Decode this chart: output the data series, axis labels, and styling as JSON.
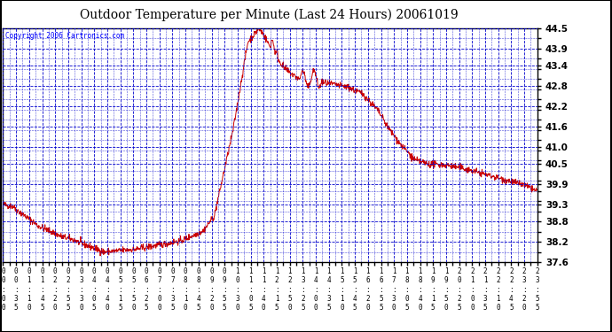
{
  "title": "Outdoor Temperature per Minute (Last 24 Hours) 20061019",
  "copyright": "Copyright 2006 Cartronics.com",
  "background_color": "#ffffff",
  "plot_background": "#ffffff",
  "line_color": "#cc0000",
  "grid_color": "#0000cc",
  "yticks": [
    37.6,
    38.2,
    38.8,
    39.3,
    39.9,
    40.5,
    41.0,
    41.6,
    42.2,
    42.8,
    43.4,
    43.9,
    44.5
  ],
  "ylim": [
    37.6,
    44.5
  ],
  "xtick_labels": [
    "00:00",
    "00:35",
    "01:10",
    "01:45",
    "02:20",
    "02:55",
    "03:30",
    "04:05",
    "04:40",
    "05:15",
    "05:50",
    "06:25",
    "07:00",
    "07:35",
    "08:10",
    "08:45",
    "09:20",
    "09:55",
    "10:30",
    "11:05",
    "11:40",
    "12:15",
    "12:50",
    "13:25",
    "14:00",
    "14:35",
    "15:10",
    "15:45",
    "16:20",
    "16:55",
    "17:30",
    "18:05",
    "18:40",
    "19:15",
    "19:50",
    "20:25",
    "21:00",
    "21:35",
    "22:10",
    "22:45",
    "23:20",
    "23:55"
  ],
  "num_points": 1440
}
